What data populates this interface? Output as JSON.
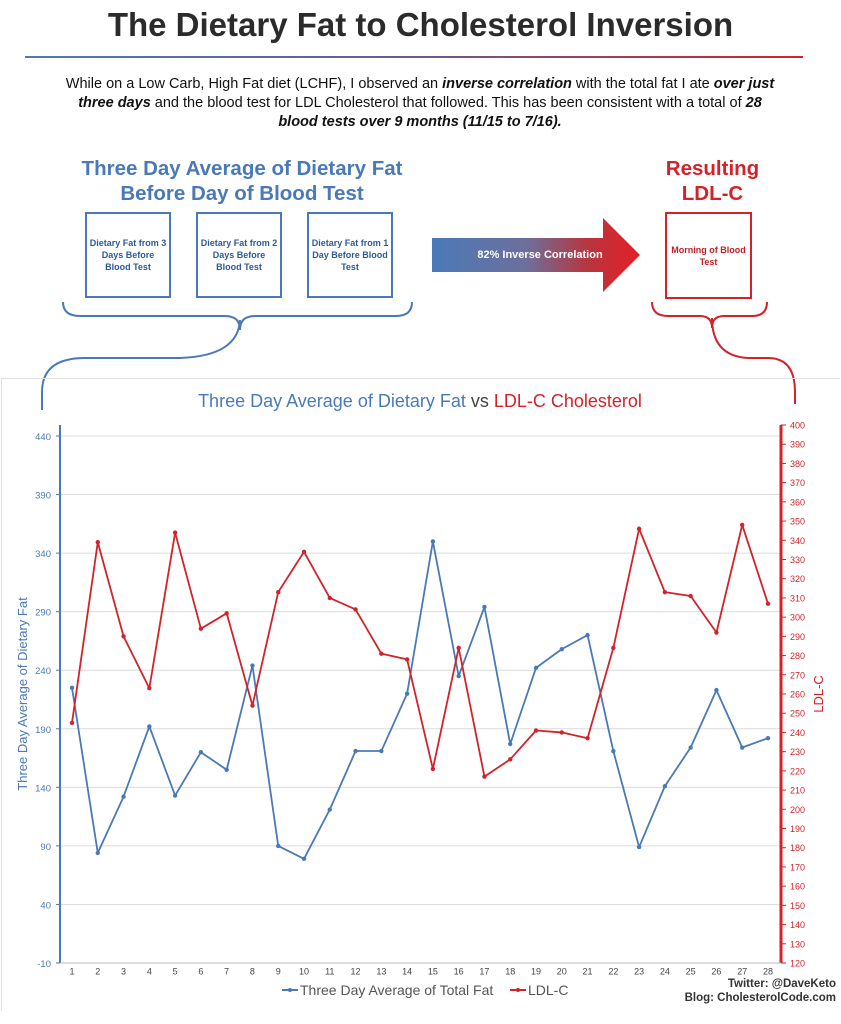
{
  "header": {
    "title": "The Dietary Fat to Cholesterol Inversion",
    "intro": {
      "p1": "While on a Low Carb, High Fat diet (LCHF), I observed an ",
      "b1": "inverse correlation",
      "p2": " with the total fat I ate ",
      "b2": "over just three days",
      "p3": " and the blood test for LDL Cholesterol that followed. This has been consistent with a total of ",
      "b3": "28 blood tests over 9 months (11/15 to 7/16)."
    }
  },
  "diagram": {
    "fat_heading": "Three Day Average of Dietary Fat Before Day of Blood Test",
    "ldl_heading": "Resulting LDL-C",
    "boxes": [
      "Dietary Fat from 3 Days Before Blood Test",
      "Dietary Fat from 2 Days Before Blood Test",
      "Dietary Fat from 1 Day Before Blood Test"
    ],
    "arrow_label": "82% Inverse Correlation",
    "result_box": "Morning of Blood Test"
  },
  "chart_data": {
    "type": "line",
    "title_part1": "Three Day Average of Dietary Fat",
    "title_vs": "vs",
    "title_part2": "LDL-C Cholesterol",
    "xlabel": "",
    "ylabel_left": "Three Day Average of Dietary Fat",
    "ylabel_right": "LDL-C",
    "x": [
      1,
      2,
      3,
      4,
      5,
      6,
      7,
      8,
      9,
      10,
      11,
      12,
      13,
      14,
      15,
      16,
      17,
      18,
      19,
      20,
      21,
      22,
      23,
      24,
      25,
      26,
      27,
      28
    ],
    "left_axis": {
      "ylim": [
        -10,
        440
      ],
      "ticks": [
        -10,
        40,
        90,
        140,
        190,
        240,
        290,
        340,
        390,
        440
      ]
    },
    "right_axis": {
      "ylim": [
        120,
        400
      ],
      "ticks": [
        120,
        130,
        140,
        150,
        160,
        170,
        180,
        190,
        200,
        210,
        220,
        230,
        240,
        250,
        260,
        270,
        280,
        290,
        300,
        310,
        320,
        330,
        340,
        350,
        360,
        370,
        380,
        390,
        400
      ]
    },
    "series": [
      {
        "name": "Three Day Average of Total Fat",
        "axis": "left",
        "color": "#4a79b8",
        "light": "#b5cde6",
        "values": [
          225,
          84,
          132,
          192,
          133,
          170,
          155,
          244,
          90,
          79,
          121,
          171,
          171,
          220,
          350,
          235,
          294,
          177,
          242,
          258,
          270,
          171,
          89,
          141,
          174,
          223,
          174,
          182
        ]
      },
      {
        "name": "LDL-C",
        "axis": "right",
        "color": "#d2232a",
        "light": "#f0a8a8",
        "values": [
          245,
          339,
          290,
          263,
          344,
          294,
          302,
          254,
          313,
          334,
          310,
          304,
          281,
          278,
          221,
          284,
          217,
          226,
          241,
          240,
          237,
          284,
          346,
          313,
          311,
          292,
          348,
          307
        ]
      }
    ],
    "grid": true,
    "legend_position": "bottom-center"
  },
  "credits": {
    "twitter": "Twitter: @DaveKeto",
    "blog": "Blog: CholesterolCode.com"
  },
  "colors": {
    "fat_blue": "#4a79b8",
    "ldl_red": "#d2232a"
  }
}
